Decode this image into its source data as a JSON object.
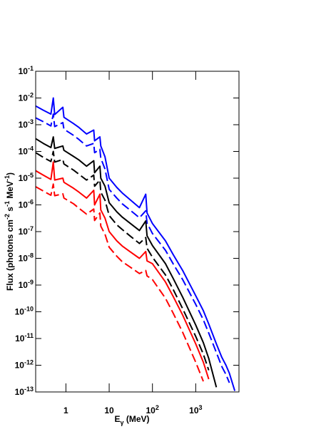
{
  "chart_data": {
    "type": "line",
    "xlog": true,
    "ylog": true,
    "x": [
      0.2,
      0.3,
      0.45,
      0.511,
      0.55,
      0.85,
      0.9,
      1.5,
      2,
      3,
      4.4,
      4.6,
      6.1,
      6.4,
      8,
      10,
      15,
      20,
      30,
      50,
      70,
      75,
      100,
      200,
      300,
      500,
      1000,
      1500,
      2000,
      3000,
      4000,
      5000,
      6000,
      8000
    ],
    "series": [
      {
        "color": "#0000ff",
        "dash": false,
        "values": [
          0.005,
          0.0035,
          0.0025,
          0.01,
          0.0024,
          0.0045,
          0.0019,
          0.0011,
          0.00079,
          0.00045,
          0.00063,
          0.00025,
          0.00035,
          0.00016,
          6.3e-05,
          1e-05,
          4.5e-06,
          2.8e-06,
          1.6e-06,
          7.9e-07,
          2.5e-06,
          5e-07,
          2e-07,
          4.5e-08,
          1.4e-08,
          3.5e-09,
          4e-10,
          1.1e-10,
          3.5e-11,
          6.3e-12,
          2e-12,
          1e-12,
          5e-13,
          1.1e-13
        ]
      },
      {
        "color": "#0000ff",
        "dash": true,
        "values": [
          0.0018,
          0.0013,
          0.0009,
          0.0025,
          0.00085,
          0.0012,
          0.00068,
          0.0004,
          0.00028,
          0.00016,
          0.0002,
          9e-05,
          0.00012,
          5.6e-05,
          2.2e-05,
          3.8e-06,
          1.8e-06,
          1.1e-06,
          6.5e-07,
          3.3e-07,
          6e-07,
          2.1e-07,
          8.5e-08,
          2e-08,
          6.3e-09,
          1.6e-09,
          1.9e-10,
          5e-11,
          1.6e-11,
          3e-12,
          9e-13,
          4.5e-13,
          2.2e-13,
          null
        ]
      },
      {
        "color": "#000000",
        "dash": false,
        "values": [
          0.0003,
          0.0002,
          0.00014,
          0.00035,
          0.00013,
          0.00016,
          0.00011,
          6.5e-05,
          4.8e-05,
          2.8e-05,
          4.5e-05,
          1.6e-05,
          2.8e-05,
          1e-05,
          5e-06,
          1.2e-06,
          5.5e-07,
          3.5e-07,
          2.1e-07,
          1.1e-07,
          2.5e-07,
          7e-08,
          3e-08,
          6.3e-09,
          1.8e-09,
          3.5e-10,
          3.2e-11,
          7e-12,
          1.8e-12,
          1.5e-13,
          null,
          null,
          null,
          null
        ]
      },
      {
        "color": "#000000",
        "dash": true,
        "values": [
          9e-05,
          6e-05,
          4.2e-05,
          0.0001,
          4e-05,
          5e-05,
          3.4e-05,
          2e-05,
          1.4e-05,
          8.5e-06,
          1.3e-05,
          5e-06,
          8.5e-06,
          3e-06,
          1.5e-06,
          4e-07,
          1.8e-07,
          1.2e-07,
          7e-08,
          3.6e-08,
          6e-08,
          2.4e-08,
          1.1e-08,
          2.4e-09,
          7e-10,
          1.3e-10,
          1.2e-11,
          2.6e-12,
          6.5e-13,
          null,
          null,
          null,
          null,
          null
        ]
      },
      {
        "color": "#ff0000",
        "dash": false,
        "values": [
          1.9e-05,
          1.3e-05,
          9e-06,
          4e-05,
          8.5e-06,
          1e-05,
          7e-06,
          4.2e-06,
          3e-06,
          1.8e-06,
          3.5e-06,
          1e-06,
          2.5e-06,
          6.5e-07,
          3.2e-07,
          1e-07,
          4.5e-08,
          2.9e-08,
          1.8e-08,
          1e-08,
          1.8e-08,
          8e-09,
          6.3e-09,
          1.3e-09,
          3.8e-10,
          7.5e-11,
          6.3e-12,
          1.3e-12,
          3e-13,
          null,
          null,
          null,
          null,
          null
        ]
      },
      {
        "color": "#ff0000",
        "dash": true,
        "values": [
          4.8e-06,
          3.3e-06,
          2.3e-06,
          6e-06,
          2.2e-06,
          2.6e-06,
          1.8e-06,
          1.1e-06,
          7.5e-07,
          4.5e-07,
          7e-07,
          2.6e-07,
          5e-07,
          1.6e-07,
          8e-08,
          2.6e-08,
          1.2e-08,
          7.5e-09,
          4.8e-09,
          2.7e-09,
          3.5e-09,
          2.2e-09,
          1.6e-09,
          3.2e-10,
          9e-11,
          1.7e-11,
          1.3e-12,
          2.5e-13,
          null,
          null,
          null,
          null,
          null,
          null
        ]
      }
    ],
    "xlim": [
      0.2,
      10000
    ],
    "ylim": [
      1e-13,
      0.1
    ],
    "xticks": [
      1,
      10,
      {
        "value": 100,
        "label": "10",
        "exponent": "2"
      },
      {
        "value": 1000,
        "label": "10",
        "exponent": "3"
      }
    ],
    "yticks": [
      {
        "value": 0.1,
        "label": "10",
        "exponent": "-1"
      },
      {
        "value": 0.01,
        "label": "10",
        "exponent": "-2"
      },
      {
        "value": 0.001,
        "label": "10",
        "exponent": "-3"
      },
      {
        "value": 0.0001,
        "label": "10",
        "exponent": "-4"
      },
      {
        "value": 1e-05,
        "label": "10",
        "exponent": "-5"
      },
      {
        "value": 1e-06,
        "label": "10",
        "exponent": "-6"
      },
      {
        "value": 1e-07,
        "label": "10",
        "exponent": "-7"
      },
      {
        "value": 1e-08,
        "label": "10",
        "exponent": "-8"
      },
      {
        "value": 1e-09,
        "label": "10",
        "exponent": "-9"
      },
      {
        "value": 1e-10,
        "label": "10",
        "exponent": "-10"
      },
      {
        "value": 1e-11,
        "label": "10",
        "exponent": "-11"
      },
      {
        "value": 1e-12,
        "label": "10",
        "exponent": "-12"
      },
      {
        "value": 1e-13,
        "label": "10",
        "exponent": "-13"
      }
    ],
    "xlabel": [
      {
        "text": "E",
        "script": "none"
      },
      {
        "text": "γ",
        "script": "sub"
      },
      {
        "text": " (MeV)",
        "script": "none"
      }
    ],
    "ylabel": [
      {
        "text": "Flux (photons cm",
        "script": "none"
      },
      {
        "text": "-2",
        "script": "sup"
      },
      {
        "text": " s",
        "script": "none"
      },
      {
        "text": "-1",
        "script": "sup"
      },
      {
        "text": " MeV",
        "script": "none"
      },
      {
        "text": "-1",
        "script": "sup"
      },
      {
        "text": ")",
        "script": "none"
      }
    ]
  }
}
